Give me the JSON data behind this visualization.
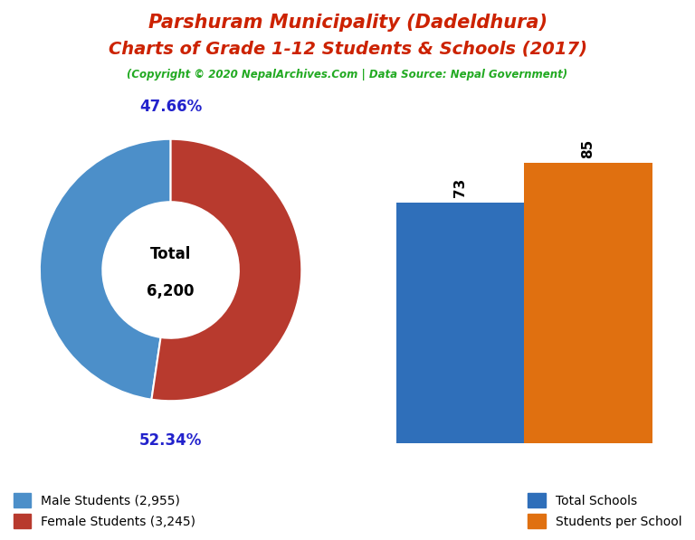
{
  "title_line1": "Parshuram Municipality (Dadeldhura)",
  "title_line2": "Charts of Grade 1-12 Students & Schools (2017)",
  "subtitle": "(Copyright © 2020 NepalArchives.Com | Data Source: Nepal Government)",
  "title_color": "#cc2200",
  "subtitle_color": "#22aa22",
  "male_students": 2955,
  "female_students": 3245,
  "total_students": 6200,
  "male_pct": "47.66%",
  "female_pct": "52.34%",
  "male_color": "#4c8fc9",
  "female_color": "#b83a2e",
  "total_schools": 73,
  "students_per_school": 85,
  "bar_blue": "#2f6fba",
  "bar_orange": "#e07010",
  "legend_label_schools": "Total Schools",
  "legend_label_sps": "Students per School",
  "background_color": "#ffffff",
  "pct_label_color": "#2222cc"
}
